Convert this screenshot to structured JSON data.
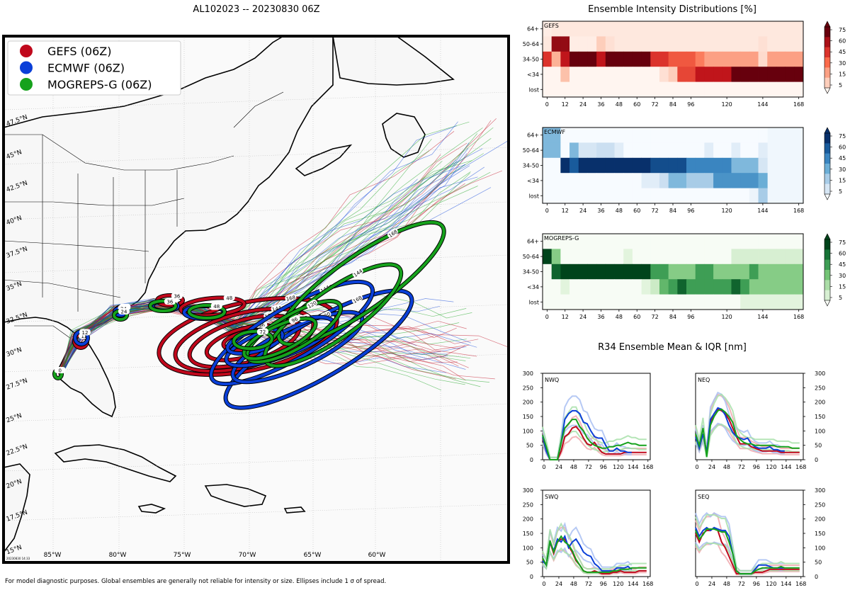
{
  "map": {
    "title": "AL102023 -- 20230830 06Z",
    "legend": [
      {
        "label": "GEFS (06Z)",
        "color": "#c0081c"
      },
      {
        "label": "ECMWF (06Z)",
        "color": "#0a3fd8"
      },
      {
        "label": "MOGREPS-G (06Z)",
        "color": "#16a21c"
      }
    ],
    "lat_labels": [
      "47.5°N",
      "45°N",
      "42.5°N",
      "40°N",
      "37.5°N",
      "35°N",
      "32.5°N",
      "30°N",
      "27.5°N",
      "25°N",
      "22.5°N",
      "20°N",
      "17.5°N",
      "15°N"
    ],
    "lon_labels": [
      "85°W",
      "80°W",
      "75°W",
      "70°W",
      "65°W",
      "60°W"
    ],
    "timestamp": "20230830 14:33",
    "footnote": "For model diagnostic purposes. Global ensembles are generally not reliable for intensity or size. Ellipses include 1 σ of spread.",
    "gefs_tags": [
      "12",
      "24",
      "36",
      "48",
      "72",
      "96",
      "120",
      "144",
      "168"
    ],
    "ecmwf_tags": [
      "12",
      "24",
      "36",
      "48",
      "72",
      "96",
      "120",
      "144",
      "168"
    ],
    "mogreps_tags": [
      "0",
      "24",
      "36",
      "48",
      "72",
      "96",
      "120",
      "144",
      "168"
    ]
  },
  "intensity": {
    "title": "Ensemble Intensity Distributions [%]",
    "row_labels": [
      "64+",
      "50-64",
      "34-50",
      "<34",
      "lost"
    ],
    "x_ticks": [
      "0",
      "12",
      "24",
      "36",
      "48",
      "60",
      "72",
      "84",
      "96",
      "120",
      "144",
      "168"
    ],
    "cbar_ticks": [
      "75",
      "60",
      "45",
      "30",
      "15",
      "5"
    ],
    "panels": [
      {
        "name": "GEFS"
      },
      {
        "name": "ECMWF"
      },
      {
        "name": "MOGREPS-G"
      }
    ]
  },
  "r34": {
    "title": "R34 Ensemble Mean & IQR [nm]",
    "y_ticks": [
      "0",
      "50",
      "100",
      "150",
      "200",
      "250",
      "300"
    ],
    "x_ticks": [
      "0",
      "24",
      "48",
      "72",
      "96",
      "120",
      "144",
      "168"
    ],
    "panels": [
      {
        "label": "NWQ"
      },
      {
        "label": "NEQ"
      },
      {
        "label": "SWQ"
      },
      {
        "label": "SEQ"
      }
    ]
  },
  "chart_data": [
    {
      "type": "heatmap",
      "title": "Ensemble Intensity Distributions [%] - GEFS",
      "x_hours": [
        0,
        6,
        12,
        18,
        24,
        30,
        36,
        42,
        48,
        54,
        60,
        66,
        72,
        78,
        84,
        90,
        96,
        102,
        108,
        114,
        120,
        126,
        132,
        138,
        144,
        150,
        156,
        162,
        168
      ],
      "rows": [
        "64+",
        "50-64",
        "34-50",
        "<34",
        "lost"
      ],
      "values": [
        [
          3,
          5,
          5,
          5,
          5,
          5,
          5,
          5,
          5,
          5,
          5,
          5,
          5,
          5,
          5,
          5,
          5,
          5,
          5,
          5,
          5,
          5,
          5,
          5,
          5,
          5,
          5,
          5,
          5
        ],
        [
          5,
          80,
          80,
          3,
          3,
          3,
          15,
          8,
          5,
          5,
          5,
          5,
          5,
          5,
          5,
          5,
          5,
          5,
          5,
          5,
          5,
          5,
          5,
          5,
          8,
          5,
          5,
          5,
          5
        ],
        [
          60,
          25,
          70,
          90,
          90,
          90,
          70,
          90,
          90,
          90,
          90,
          90,
          60,
          60,
          50,
          50,
          50,
          40,
          30,
          30,
          30,
          30,
          30,
          30,
          10,
          30,
          30,
          30,
          30
        ],
        [
          0,
          0,
          20,
          0,
          0,
          0,
          0,
          0,
          0,
          0,
          0,
          0,
          0,
          8,
          15,
          55,
          55,
          70,
          70,
          70,
          70,
          90,
          90,
          90,
          90,
          90,
          90,
          90,
          90
        ],
        [
          0,
          0,
          0,
          0,
          0,
          0,
          0,
          0,
          0,
          0,
          0,
          0,
          0,
          0,
          0,
          0,
          0,
          0,
          0,
          0,
          0,
          0,
          0,
          0,
          0,
          0,
          0,
          0,
          0
        ]
      ]
    },
    {
      "type": "heatmap",
      "title": "Ensemble Intensity Distributions [%] - ECMWF",
      "x_hours": [
        0,
        6,
        12,
        18,
        24,
        30,
        36,
        42,
        48,
        54,
        60,
        66,
        72,
        78,
        84,
        90,
        96,
        102,
        108,
        114,
        120,
        126,
        132,
        138,
        144
      ],
      "rows": [
        "64+",
        "50-64",
        "34-50",
        "<34",
        "lost"
      ],
      "values": [
        [
          40,
          40,
          0,
          0,
          0,
          0,
          0,
          0,
          0,
          0,
          0,
          0,
          0,
          0,
          0,
          0,
          0,
          0,
          0,
          0,
          0,
          0,
          0,
          0,
          0
        ],
        [
          40,
          40,
          0,
          40,
          15,
          15,
          20,
          20,
          10,
          0,
          0,
          0,
          0,
          0,
          0,
          0,
          0,
          0,
          10,
          0,
          0,
          10,
          0,
          0,
          10
        ],
        [
          0,
          0,
          95,
          75,
          90,
          90,
          90,
          90,
          90,
          90,
          90,
          90,
          80,
          80,
          80,
          80,
          60,
          60,
          60,
          60,
          60,
          40,
          40,
          40,
          15
        ],
        [
          0,
          0,
          0,
          0,
          0,
          0,
          0,
          0,
          0,
          0,
          0,
          10,
          10,
          20,
          40,
          40,
          30,
          30,
          30,
          55,
          55,
          55,
          55,
          55,
          45
        ],
        [
          0,
          0,
          0,
          0,
          0,
          0,
          0,
          0,
          0,
          0,
          0,
          0,
          0,
          0,
          0,
          0,
          0,
          0,
          0,
          0,
          0,
          0,
          0,
          5,
          30
        ]
      ]
    },
    {
      "type": "heatmap",
      "title": "Ensemble Intensity Distributions [%] - MOGREPS-G",
      "x_hours": [
        0,
        6,
        12,
        18,
        24,
        30,
        36,
        42,
        48,
        54,
        60,
        66,
        72,
        78,
        84,
        90,
        96,
        102,
        108,
        114,
        120,
        126,
        132,
        138,
        144,
        150,
        156,
        162,
        168
      ],
      "rows": [
        "64+",
        "50-64",
        "34-50",
        "<34",
        "lost"
      ],
      "values": [
        [
          0,
          0,
          0,
          0,
          0,
          0,
          0,
          0,
          0,
          0,
          0,
          0,
          0,
          0,
          0,
          0,
          0,
          0,
          0,
          0,
          0,
          0,
          0,
          0,
          0,
          0,
          0,
          0,
          0
        ],
        [
          95,
          40,
          0,
          0,
          0,
          0,
          0,
          0,
          0,
          10,
          0,
          0,
          0,
          0,
          0,
          0,
          0,
          0,
          0,
          0,
          0,
          15,
          15,
          15,
          15,
          15,
          15,
          15,
          15
        ],
        [
          0,
          80,
          95,
          95,
          95,
          95,
          95,
          95,
          95,
          95,
          95,
          95,
          60,
          60,
          40,
          40,
          40,
          60,
          60,
          40,
          40,
          40,
          40,
          60,
          40,
          40,
          40,
          40,
          40
        ],
        [
          0,
          0,
          10,
          0,
          0,
          0,
          0,
          0,
          0,
          0,
          0,
          10,
          20,
          50,
          60,
          80,
          60,
          60,
          60,
          60,
          60,
          80,
          60,
          40,
          40,
          40,
          40,
          40,
          40
        ],
        [
          0,
          0,
          0,
          0,
          0,
          0,
          0,
          0,
          0,
          0,
          0,
          0,
          0,
          0,
          0,
          0,
          0,
          0,
          0,
          0,
          0,
          0,
          10,
          10,
          10,
          10,
          10,
          10,
          10
        ]
      ]
    },
    {
      "type": "line",
      "title": "R34 Ensemble Mean & IQR [nm] - NWQ",
      "ylim": [
        0,
        300
      ],
      "xlim": [
        0,
        174
      ],
      "x": [
        0,
        6,
        12,
        18,
        24,
        30,
        36,
        42,
        48,
        54,
        60,
        66,
        72,
        78,
        84,
        90,
        96,
        102,
        108,
        114,
        120,
        126,
        132,
        138,
        144,
        150,
        156,
        162,
        168
      ],
      "series": [
        {
          "name": "GEFS",
          "values": [
            75,
            30,
            0,
            0,
            0,
            30,
            80,
            90,
            110,
            115,
            100,
            75,
            55,
            50,
            60,
            40,
            25,
            20,
            20,
            20,
            20,
            20,
            25,
            25,
            25,
            25,
            25,
            25,
            25
          ]
        },
        {
          "name": "ECMWF",
          "values": [
            80,
            30,
            0,
            0,
            0,
            60,
            140,
            160,
            170,
            170,
            160,
            130,
            125,
            100,
            80,
            75,
            75,
            50,
            30,
            30,
            40,
            30,
            30,
            25,
            25,
            null,
            null,
            null,
            null
          ]
        },
        {
          "name": "MOGREPS-G",
          "values": [
            85,
            45,
            0,
            0,
            0,
            60,
            110,
            125,
            140,
            140,
            115,
            100,
            75,
            60,
            50,
            45,
            40,
            40,
            45,
            45,
            50,
            50,
            55,
            60,
            55,
            55,
            50,
            50,
            50
          ]
        }
      ]
    },
    {
      "type": "line",
      "title": "R34 Ensemble Mean & IQR [nm] - NEQ",
      "ylim": [
        0,
        300
      ],
      "xlim": [
        0,
        174
      ],
      "x": [
        0,
        6,
        12,
        18,
        24,
        30,
        36,
        42,
        48,
        54,
        60,
        66,
        72,
        78,
        84,
        90,
        96,
        102,
        108,
        114,
        120,
        126,
        132,
        138,
        144,
        150,
        156,
        162,
        168
      ],
      "series": [
        {
          "name": "GEFS",
          "values": [
            85,
            40,
            90,
            25,
            130,
            160,
            175,
            170,
            160,
            140,
            110,
            80,
            55,
            55,
            55,
            45,
            40,
            35,
            30,
            30,
            30,
            30,
            30,
            25,
            25,
            25,
            25,
            25,
            25
          ]
        },
        {
          "name": "ECMWF",
          "values": [
            80,
            40,
            90,
            25,
            140,
            160,
            180,
            175,
            155,
            120,
            95,
            80,
            75,
            70,
            75,
            55,
            45,
            40,
            40,
            40,
            45,
            35,
            35,
            30,
            30,
            null,
            null,
            null,
            null
          ]
        },
        {
          "name": "MOGREPS-G",
          "values": [
            90,
            50,
            110,
            10,
            120,
            150,
            170,
            175,
            165,
            150,
            130,
            85,
            70,
            60,
            55,
            55,
            50,
            50,
            50,
            50,
            50,
            50,
            45,
            45,
            45,
            45,
            40,
            40,
            40
          ]
        }
      ]
    },
    {
      "type": "line",
      "title": "R34 Ensemble Mean & IQR [nm] - SWQ",
      "ylim": [
        0,
        300
      ],
      "xlim": [
        0,
        174
      ],
      "x": [
        0,
        6,
        12,
        18,
        24,
        30,
        36,
        42,
        48,
        54,
        60,
        66,
        72,
        78,
        84,
        90,
        96,
        102,
        108,
        114,
        120,
        126,
        132,
        138,
        144,
        150,
        156,
        162,
        168
      ],
      "series": [
        {
          "name": "GEFS",
          "values": [
            60,
            40,
            120,
            80,
            120,
            130,
            130,
            105,
            85,
            55,
            40,
            20,
            15,
            15,
            20,
            15,
            10,
            10,
            10,
            15,
            15,
            20,
            15,
            15,
            15,
            15,
            20,
            20,
            20
          ]
        },
        {
          "name": "ECMWF",
          "values": [
            55,
            40,
            120,
            90,
            130,
            120,
            140,
            100,
            120,
            130,
            110,
            85,
            75,
            70,
            45,
            35,
            20,
            20,
            20,
            20,
            30,
            30,
            30,
            35,
            25,
            null,
            null,
            null,
            null
          ]
        },
        {
          "name": "MOGREPS-G",
          "values": [
            65,
            40,
            125,
            85,
            120,
            140,
            120,
            110,
            90,
            60,
            40,
            20,
            15,
            15,
            15,
            15,
            15,
            15,
            15,
            20,
            20,
            25,
            25,
            25,
            30,
            30,
            30,
            30,
            30
          ]
        }
      ]
    },
    {
      "type": "line",
      "title": "R34 Ensemble Mean & IQR [nm] - SEQ",
      "ylim": [
        0,
        300
      ],
      "xlim": [
        0,
        174
      ],
      "x": [
        0,
        6,
        12,
        18,
        24,
        30,
        36,
        42,
        48,
        54,
        60,
        66,
        72,
        78,
        84,
        90,
        96,
        102,
        108,
        114,
        120,
        126,
        132,
        138,
        144,
        150,
        156,
        162,
        168
      ],
      "series": [
        {
          "name": "GEFS",
          "values": [
            150,
            120,
            150,
            160,
            160,
            170,
            160,
            120,
            100,
            70,
            40,
            10,
            10,
            10,
            10,
            10,
            15,
            15,
            15,
            20,
            25,
            25,
            25,
            25,
            25,
            25,
            25,
            25,
            25
          ]
        },
        {
          "name": "ECMWF",
          "values": [
            170,
            140,
            160,
            170,
            160,
            170,
            165,
            160,
            160,
            140,
            80,
            20,
            10,
            10,
            10,
            10,
            25,
            40,
            40,
            40,
            35,
            30,
            30,
            30,
            30,
            null,
            null,
            null,
            null
          ]
        },
        {
          "name": "MOGREPS-G",
          "values": [
            160,
            130,
            145,
            165,
            165,
            165,
            160,
            155,
            155,
            120,
            80,
            20,
            10,
            10,
            10,
            10,
            20,
            25,
            30,
            30,
            30,
            30,
            30,
            35,
            30,
            30,
            30,
            30,
            30
          ]
        }
      ]
    }
  ]
}
